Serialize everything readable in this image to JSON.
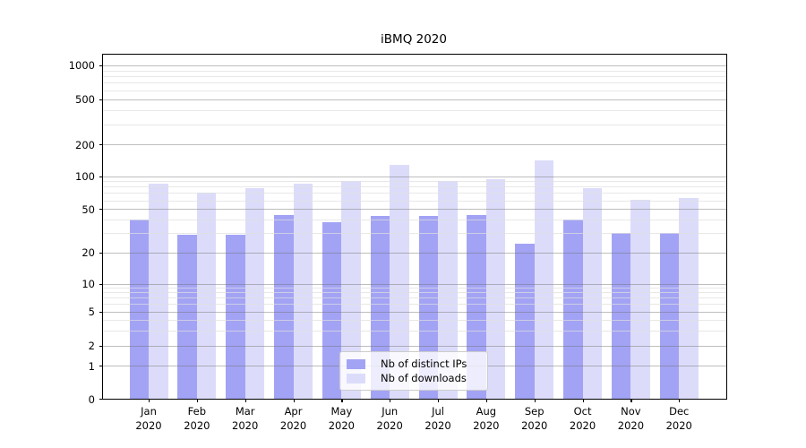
{
  "chart_data": {
    "type": "bar",
    "title": "iBMQ 2020",
    "categories": [
      "Jan",
      "Feb",
      "Mar",
      "Apr",
      "May",
      "Jun",
      "Jul",
      "Aug",
      "Sep",
      "Oct",
      "Nov",
      "Dec"
    ],
    "category_year": "2020",
    "series": [
      {
        "name": "Nb of distinct IPs",
        "color": "#a3a3f5",
        "values": [
          40,
          29,
          29,
          44,
          38,
          43,
          43,
          44,
          24,
          40,
          30,
          30
        ]
      },
      {
        "name": "Nb of downloads",
        "color": "#dcdcfa",
        "values": [
          86,
          70,
          78,
          85,
          90,
          127,
          90,
          94,
          140,
          78,
          61,
          63
        ]
      }
    ],
    "xlabel": "",
    "ylabel": "",
    "yscale": "symlog",
    "y_ticks": [
      0,
      1,
      2,
      5,
      10,
      20,
      50,
      100,
      200,
      500,
      1000
    ],
    "ylim": [
      0,
      1100
    ],
    "grid": true,
    "legend_position": "lower center"
  }
}
